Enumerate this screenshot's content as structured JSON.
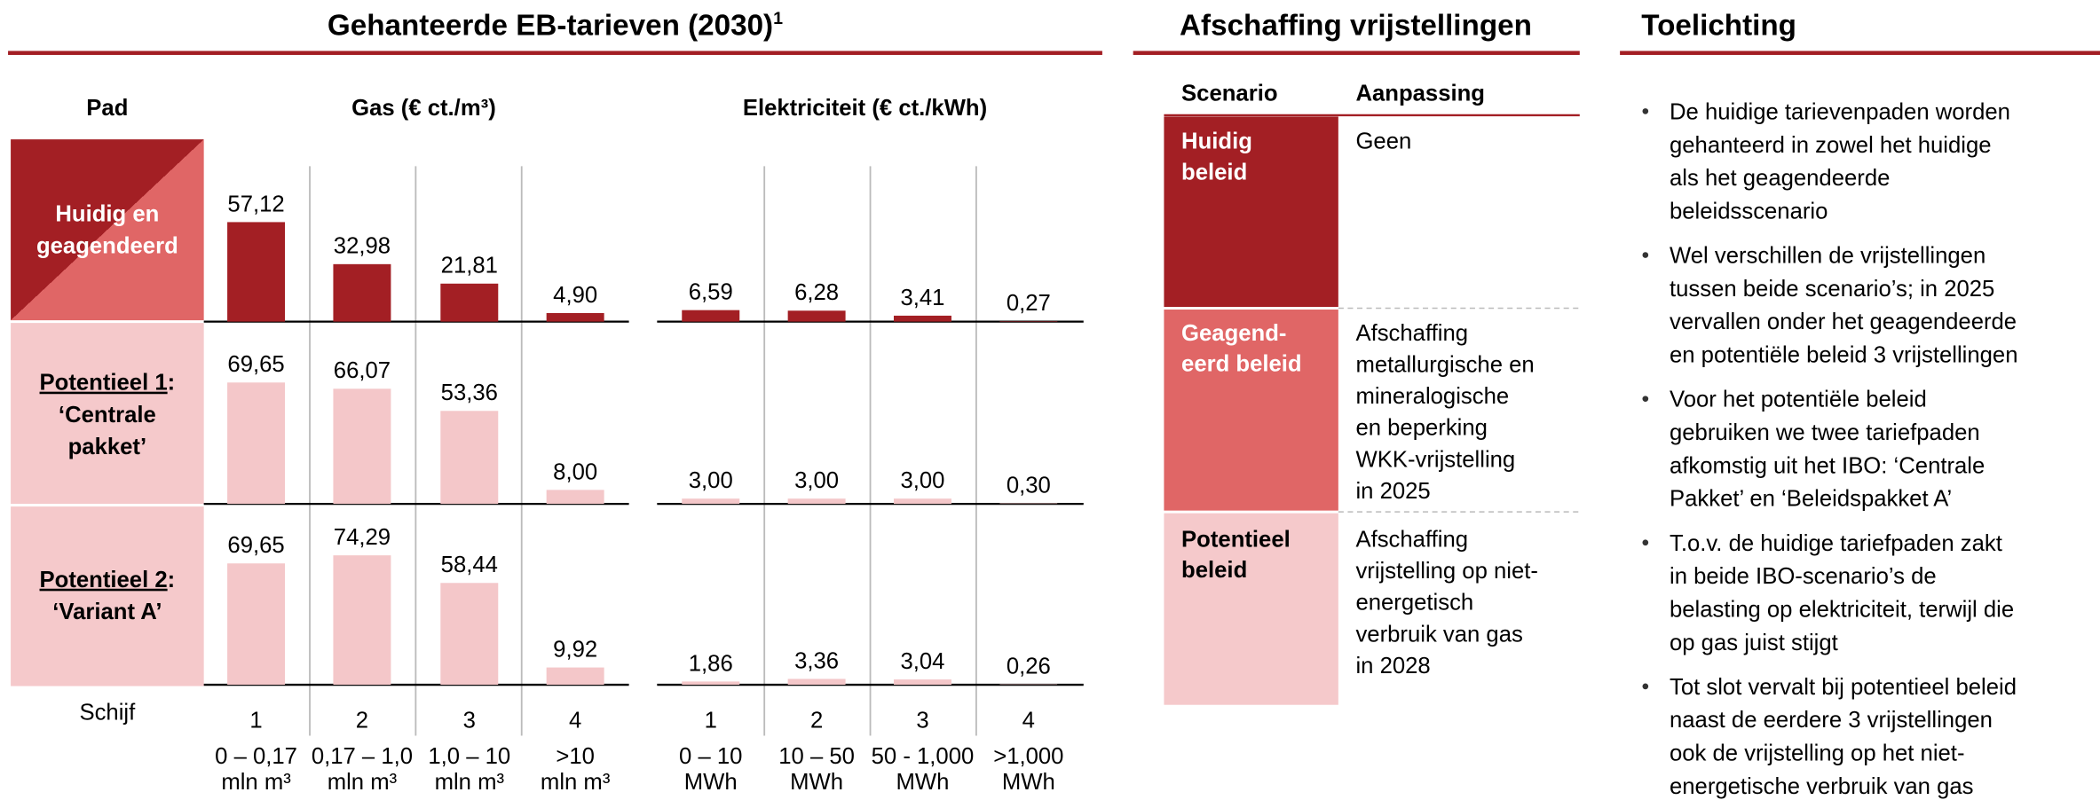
{
  "tariffs": {
    "title": "Gehanteerde EB-tarieven (2030)",
    "title_sup": "1",
    "headers": {
      "path": "Pad",
      "gas": "Gas (€ ct./m³)",
      "electricity": "Elektriciteit (€ ct./kWh)"
    },
    "rows": [
      {
        "label": [
          "Huidig en",
          "geagendeerd"
        ],
        "gas": {
          "values": [
            57.12,
            32.98,
            21.81,
            4.9
          ],
          "value_labels": [
            "57,12",
            "32,98",
            "21,81",
            "4,90"
          ]
        },
        "electricity": {
          "values": [
            6.59,
            6.28,
            3.41,
            0.27
          ],
          "value_labels": [
            "6,59",
            "6,28",
            "3,41",
            "0,27"
          ]
        }
      },
      {
        "label_underlined": "Potentieel 1",
        "label_suffix": ":",
        "label": [
          "‘Centrale",
          "pakket’"
        ],
        "gas": {
          "values": [
            69.65,
            66.07,
            53.36,
            8.0
          ],
          "value_labels": [
            "69,65",
            "66,07",
            "53,36",
            "8,00"
          ]
        },
        "electricity": {
          "values": [
            3.0,
            3.0,
            3.0,
            0.3
          ],
          "value_labels": [
            "3,00",
            "3,00",
            "3,00",
            "0,30"
          ]
        }
      },
      {
        "label_underlined": "Potentieel 2",
        "label_suffix": ":",
        "label": [
          "‘Variant A’"
        ],
        "gas": {
          "values": [
            69.65,
            74.29,
            58.44,
            9.92
          ],
          "value_labels": [
            "69,65",
            "74,29",
            "58,44",
            "9,92"
          ]
        },
        "electricity": {
          "values": [
            1.86,
            3.36,
            3.04,
            0.26
          ],
          "value_labels": [
            "1,86",
            "3,36",
            "3,04",
            "0,26"
          ]
        }
      }
    ],
    "tier_label": "Schijf",
    "gas_tiers": [
      {
        "tier": "1",
        "range": [
          "0 – 0,17",
          "mln m³"
        ]
      },
      {
        "tier": "2",
        "range": [
          "0,17 – 1,0",
          "mln m³"
        ]
      },
      {
        "tier": "3",
        "range": [
          "1,0 – 10",
          "mln m³"
        ]
      },
      {
        "tier": "4",
        "range": [
          ">10",
          "mln m³"
        ]
      }
    ],
    "electricity_tiers": [
      {
        "tier": "1",
        "range": [
          "0 – 10",
          "MWh"
        ]
      },
      {
        "tier": "2",
        "range": [
          "10 – 50",
          "MWh"
        ]
      },
      {
        "tier": "3",
        "range": [
          "50 - 1,000",
          "MWh"
        ]
      },
      {
        "tier": "4",
        "range": [
          ">1,000",
          "MWh"
        ]
      }
    ]
  },
  "exemptions": {
    "title": "Afschaffing vrijstellingen",
    "headers": [
      "Scenario",
      "Aanpassing"
    ],
    "rows": [
      {
        "scenario": [
          "Huidig",
          "beleid"
        ],
        "change": [
          "Geen"
        ]
      },
      {
        "scenario": [
          "Geagend-",
          "eerd beleid"
        ],
        "change": [
          "Afschaffing",
          "metallurgische en",
          "mineralogische",
          "en beperking",
          "WKK-vrijstelling",
          "in 2025"
        ]
      },
      {
        "scenario": [
          "Potentieel",
          "beleid"
        ],
        "change": [
          "Afschaffing",
          "vrijstelling op niet-",
          "energetisch",
          "verbruik van gas",
          "in 2028"
        ]
      }
    ]
  },
  "notes": {
    "title": "Toelichting",
    "bullets": [
      [
        "De huidige tarievenpaden worden",
        "gehanteerd in zowel het huidige",
        "als het geagendeerde",
        "beleidsscenario"
      ],
      [
        "Wel verschillen de vrijstellingen",
        "tussen beide scenario’s; in 2025",
        "vervallen onder het geagendeerde",
        "en potentiële beleid 3 vrijstellingen"
      ],
      [
        "Voor het potentiële beleid",
        "gebruiken we twee tariefpaden",
        "afkomstig uit het IBO: ‘Centrale",
        "Pakket’ en ‘Beleidspakket A’"
      ],
      [
        "T.o.v. de huidige tariefpaden zakt",
        "in beide IBO-scenario’s de",
        "belasting op elektriciteit, terwijl die",
        "op gas juist stijgt"
      ],
      [
        "Tot slot vervalt bij potentieel beleid",
        "naast de eerdere 3 vrijstellingen",
        "ook de vrijstelling op het niet-",
        "energetische verbruik van gas"
      ]
    ]
  }
}
